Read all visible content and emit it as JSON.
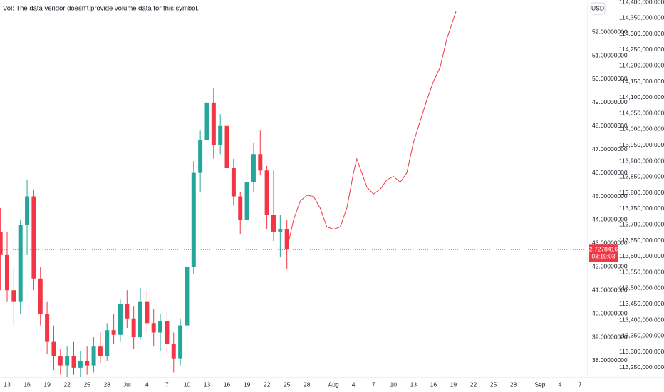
{
  "chart_data": {
    "type": "candlestick",
    "note": "Vol: The data vendor doesn't provide volume data for this symbol.",
    "currency": "USD",
    "up_color": "#26a69a",
    "down_color": "#f23645",
    "x": [
      12,
      13,
      14,
      15,
      16,
      17,
      18,
      19,
      20,
      21,
      22,
      23,
      24,
      25,
      26,
      27,
      28,
      29,
      30,
      31,
      32,
      33,
      34,
      35,
      36,
      37,
      38,
      39,
      40,
      41,
      42,
      43,
      44,
      45,
      46,
      47,
      48,
      49,
      50,
      51,
      52,
      53,
      54,
      55
    ],
    "open": [
      43.5,
      42.5,
      41,
      40.5,
      43.8,
      45,
      41.5,
      40,
      38.8,
      38.2,
      37.8,
      38.2,
      37.7,
      38,
      37.8,
      38.6,
      38.2,
      39.3,
      39.1,
      40.4,
      39.8,
      39,
      40.5,
      39.6,
      39.2,
      39.7,
      38.7,
      38.1,
      39.5,
      42,
      46,
      47.4,
      49,
      47.2,
      48,
      46.2,
      45,
      44,
      45.6,
      46.8,
      46.1,
      44.2,
      43.5,
      43.6
    ],
    "high": [
      44.5,
      43.5,
      42,
      44,
      45.7,
      45.3,
      42,
      40.5,
      39.5,
      38.5,
      38.6,
      38.8,
      38.4,
      38.6,
      39,
      39.2,
      39.6,
      40,
      40.6,
      41,
      40.3,
      41.1,
      41,
      40.2,
      40,
      40.1,
      39.2,
      39.8,
      42.3,
      46.5,
      47.8,
      49.9,
      49.6,
      48.5,
      48.2,
      46.6,
      45.2,
      46,
      47.3,
      47.8,
      46.3,
      46.1,
      44.2,
      44
    ],
    "low": [
      41,
      40.5,
      39.5,
      40,
      42.5,
      41,
      39.5,
      38.3,
      37.6,
      37.4,
      37.3,
      37.4,
      37.3,
      37.4,
      37.5,
      37.9,
      38,
      38.7,
      38.8,
      39.4,
      38.5,
      38.9,
      39.2,
      38.6,
      38.4,
      38.3,
      37.5,
      37.8,
      39.2,
      41.7,
      45.2,
      47,
      46.6,
      46.8,
      45.8,
      44.6,
      43.4,
      43.8,
      45.2,
      45.9,
      43.6,
      43.1,
      42.4,
      41.9
    ],
    "close": [
      42.5,
      41,
      40.5,
      43.8,
      45,
      41.5,
      40,
      38.8,
      38.2,
      37.8,
      38.2,
      37.7,
      38,
      37.8,
      38.6,
      38.2,
      39.3,
      39.1,
      40.4,
      39.8,
      39,
      40.5,
      39.6,
      39.2,
      39.7,
      38.7,
      38.1,
      39.5,
      42,
      46,
      47.4,
      49,
      47.2,
      48,
      46.2,
      45,
      44,
      45.6,
      46.8,
      46.1,
      44.2,
      43.5,
      43.6,
      42.73
    ],
    "forecast": {
      "color": "#f23645",
      "x": [
        55,
        56,
        57,
        58,
        59,
        60,
        61,
        62,
        63,
        64,
        65,
        65.5,
        66,
        67,
        68,
        69,
        70,
        71,
        72,
        73,
        74,
        75,
        76,
        77,
        78,
        79,
        80.4
      ],
      "values": [
        42.73,
        44.0,
        44.8,
        45.05,
        45.0,
        44.5,
        43.7,
        43.6,
        43.7,
        44.5,
        46.0,
        46.6,
        46.2,
        45.4,
        45.1,
        45.3,
        45.7,
        45.85,
        45.6,
        46.0,
        47.3,
        48.2,
        49.1,
        49.9,
        50.5,
        51.7,
        52.9
      ]
    },
    "last_price": 42.72784166,
    "countdown": "03:19:03",
    "xlim": [
      11.93,
      100.17
    ],
    "xticks": [
      {
        "value": 13,
        "label": "13"
      },
      {
        "value": 16,
        "label": "16"
      },
      {
        "value": 19,
        "label": "19"
      },
      {
        "value": 22,
        "label": "22"
      },
      {
        "value": 25,
        "label": "25"
      },
      {
        "value": 28,
        "label": "28"
      },
      {
        "value": 31,
        "label": "Jul"
      },
      {
        "value": 34,
        "label": "4"
      },
      {
        "value": 37,
        "label": "7"
      },
      {
        "value": 40,
        "label": "10"
      },
      {
        "value": 43,
        "label": "13"
      },
      {
        "value": 46,
        "label": "16"
      },
      {
        "value": 49,
        "label": "19"
      },
      {
        "value": 52,
        "label": "22"
      },
      {
        "value": 55,
        "label": "25"
      },
      {
        "value": 58,
        "label": "28"
      },
      {
        "value": 62,
        "label": "Aug"
      },
      {
        "value": 65,
        "label": "4"
      },
      {
        "value": 68,
        "label": "7"
      },
      {
        "value": 71,
        "label": "10"
      },
      {
        "value": 74,
        "label": "13"
      },
      {
        "value": 77,
        "label": "16"
      },
      {
        "value": 80,
        "label": "19"
      },
      {
        "value": 83,
        "label": "22"
      },
      {
        "value": 86,
        "label": "25"
      },
      {
        "value": 89,
        "label": "28"
      },
      {
        "value": 93,
        "label": "Sep"
      },
      {
        "value": 96,
        "label": "4"
      },
      {
        "value": 99,
        "label": "7"
      }
    ],
    "ylim": [
      37.27,
      53.37
    ],
    "yticks": [
      {
        "value": 38,
        "label": "38.00000000"
      },
      {
        "value": 39,
        "label": "39.00000000"
      },
      {
        "value": 40,
        "label": "40.00000000"
      },
      {
        "value": 41,
        "label": "41.00000000"
      },
      {
        "value": 42,
        "label": "42.00000000"
      },
      {
        "value": 43,
        "label": "43.00000000"
      },
      {
        "value": 44,
        "label": "44.00000000"
      },
      {
        "value": 45,
        "label": "45.00000000"
      },
      {
        "value": 46,
        "label": "46.00000000"
      },
      {
        "value": 47,
        "label": "47.00000000"
      },
      {
        "value": 48,
        "label": "48.00000000"
      },
      {
        "value": 49,
        "label": "49.00000000"
      },
      {
        "value": 50,
        "label": "50.00000000"
      },
      {
        "value": 51,
        "label": "51.00000000"
      },
      {
        "value": 52,
        "label": "52.00000000"
      }
    ],
    "y2lim": [
      113218610,
      114406726
    ],
    "y2ticks": [
      {
        "value": 113250000,
        "label": "113,250,000.00000000"
      },
      {
        "value": 113300000,
        "label": "113,300,000.00000000"
      },
      {
        "value": 113350000,
        "label": "113,350,000.00000000"
      },
      {
        "value": 113400000,
        "label": "113,400,000.00000000"
      },
      {
        "value": 113450000,
        "label": "113,450,000.00000000"
      },
      {
        "value": 113500000,
        "label": "113,500,000.00000000"
      },
      {
        "value": 113550000,
        "label": "113,550,000.00000000"
      },
      {
        "value": 113600000,
        "label": "113,600,000.00000000"
      },
      {
        "value": 113650000,
        "label": "113,650,000.00000000"
      },
      {
        "value": 113700000,
        "label": "113,700,000.00000000"
      },
      {
        "value": 113750000,
        "label": "113,750,000.00000000"
      },
      {
        "value": 113800000,
        "label": "113,800,000.00000000"
      },
      {
        "value": 113850000,
        "label": "113,850,000.00000000"
      },
      {
        "value": 113900000,
        "label": "113,900,000.00000000"
      },
      {
        "value": 113950000,
        "label": "113,950,000.00000000"
      },
      {
        "value": 114000000,
        "label": "114,000,000.00000000"
      },
      {
        "value": 114050000,
        "label": "114,050,000.00000000"
      },
      {
        "value": 114100000,
        "label": "114,100,000.00000000"
      },
      {
        "value": 114150000,
        "label": "114,150,000.00000000"
      },
      {
        "value": 114200000,
        "label": "114,200,000.00000000"
      },
      {
        "value": 114250000,
        "label": "114,250,000.00000000"
      },
      {
        "value": 114300000,
        "label": "114,300,000.00000000"
      },
      {
        "value": 114350000,
        "label": "114,350,000.00000000"
      },
      {
        "value": 114400000,
        "label": "114,400,000.00000000"
      }
    ]
  }
}
